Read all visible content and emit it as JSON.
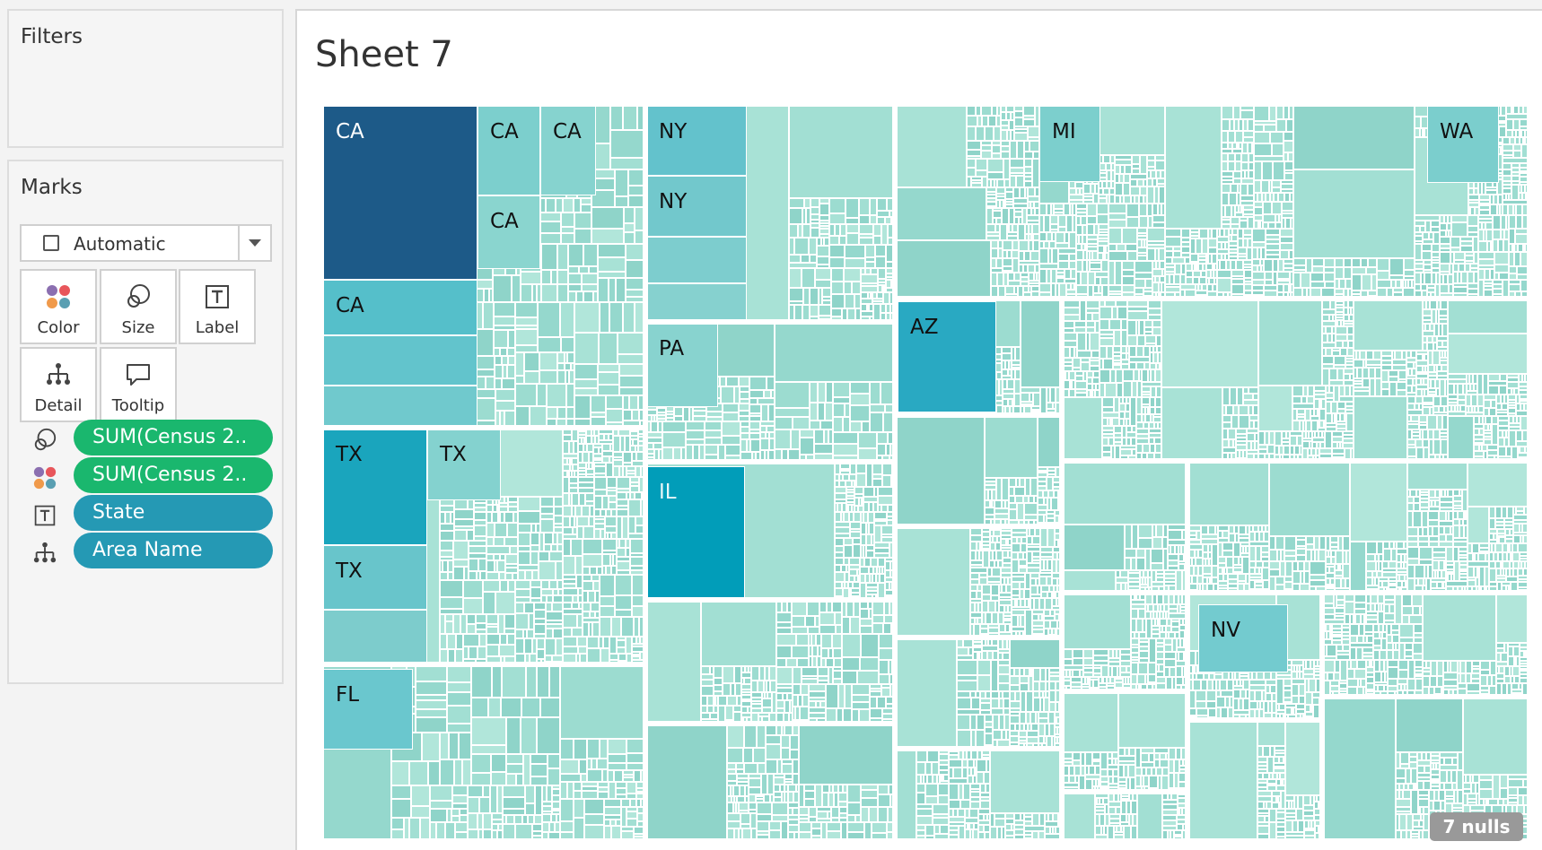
{
  "filters": {
    "title": "Filters"
  },
  "marks": {
    "title": "Marks",
    "mark_type": "Automatic",
    "buttons": {
      "color": "Color",
      "size": "Size",
      "label": "Label",
      "detail": "Detail",
      "tooltip": "Tooltip"
    },
    "pills": [
      {
        "icon": "size-icon",
        "text": "SUM(Census 2..",
        "color": "#1ab76e"
      },
      {
        "icon": "color-icon",
        "text": "SUM(Census 2..",
        "color": "#1ab76e"
      },
      {
        "icon": "label-icon",
        "text": "State",
        "color": "#2599b4"
      },
      {
        "icon": "detail-icon",
        "text": "Area Name",
        "color": "#2599b4"
      }
    ]
  },
  "sheet": {
    "title": "Sheet 7"
  },
  "chart_data": {
    "type": "treemap",
    "size_measure": "SUM(Census 2..",
    "color_measure": "SUM(Census 2..",
    "label_dimension": "State",
    "detail_dimension": "Area Name",
    "labels": [
      "CA",
      "CA",
      "CA",
      "CA",
      "CA",
      "NY",
      "NY",
      "MI",
      "WA",
      "TX",
      "TX",
      "TX",
      "PA",
      "AZ",
      "IL",
      "FL",
      "NV"
    ],
    "palette": {
      "low": "#a9e3d6",
      "high": "#1c5a88"
    }
  },
  "nulls_indicator": "7 nulls"
}
